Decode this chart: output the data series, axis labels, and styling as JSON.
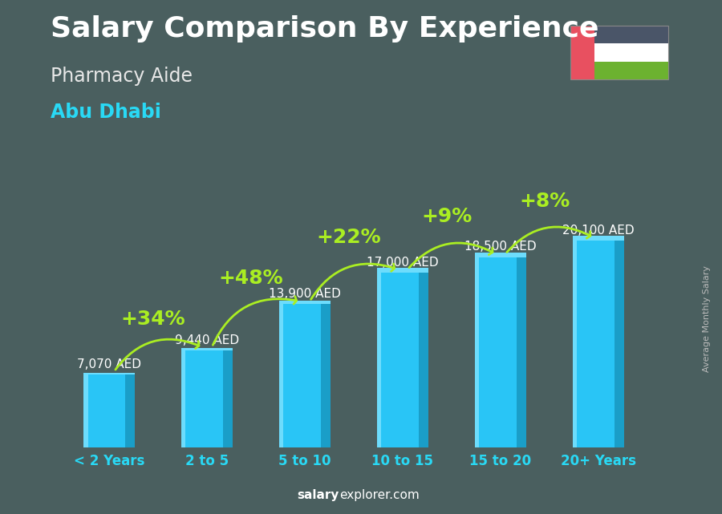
{
  "title": "Salary Comparison By Experience",
  "subtitle1": "Pharmacy Aide",
  "subtitle2": "Abu Dhabi",
  "categories": [
    "< 2 Years",
    "2 to 5",
    "5 to 10",
    "10 to 15",
    "15 to 20",
    "20+ Years"
  ],
  "values": [
    7070,
    9440,
    13900,
    17000,
    18500,
    20100
  ],
  "value_labels": [
    "7,070 AED",
    "9,440 AED",
    "13,900 AED",
    "17,000 AED",
    "18,500 AED",
    "20,100 AED"
  ],
  "pct_labels": [
    "+34%",
    "+48%",
    "+22%",
    "+9%",
    "+8%"
  ],
  "bar_color": "#29c5f6",
  "bar_color_light": "#6ddcfc",
  "bar_color_dark": "#1a9ec8",
  "pct_color": "#aaee22",
  "title_color": "#ffffff",
  "subtitle1_color": "#e8e8e8",
  "subtitle2_color": "#29d9f5",
  "tick_color": "#29d9f5",
  "value_label_color": "#ffffff",
  "watermark_salary": "salary",
  "watermark_explorer": "explorer.com",
  "ylabel": "Average Monthly Salary",
  "background_color": "#4a5f5f",
  "ylim": [
    0,
    25000
  ],
  "title_fontsize": 26,
  "subtitle1_fontsize": 17,
  "subtitle2_fontsize": 17,
  "tick_fontsize": 12,
  "value_fontsize": 11,
  "pct_fontsize": 18,
  "flag_colors_horizontal": [
    "#6cb230",
    "#ffffff",
    "#4a5568"
  ],
  "flag_red": "#e85060"
}
